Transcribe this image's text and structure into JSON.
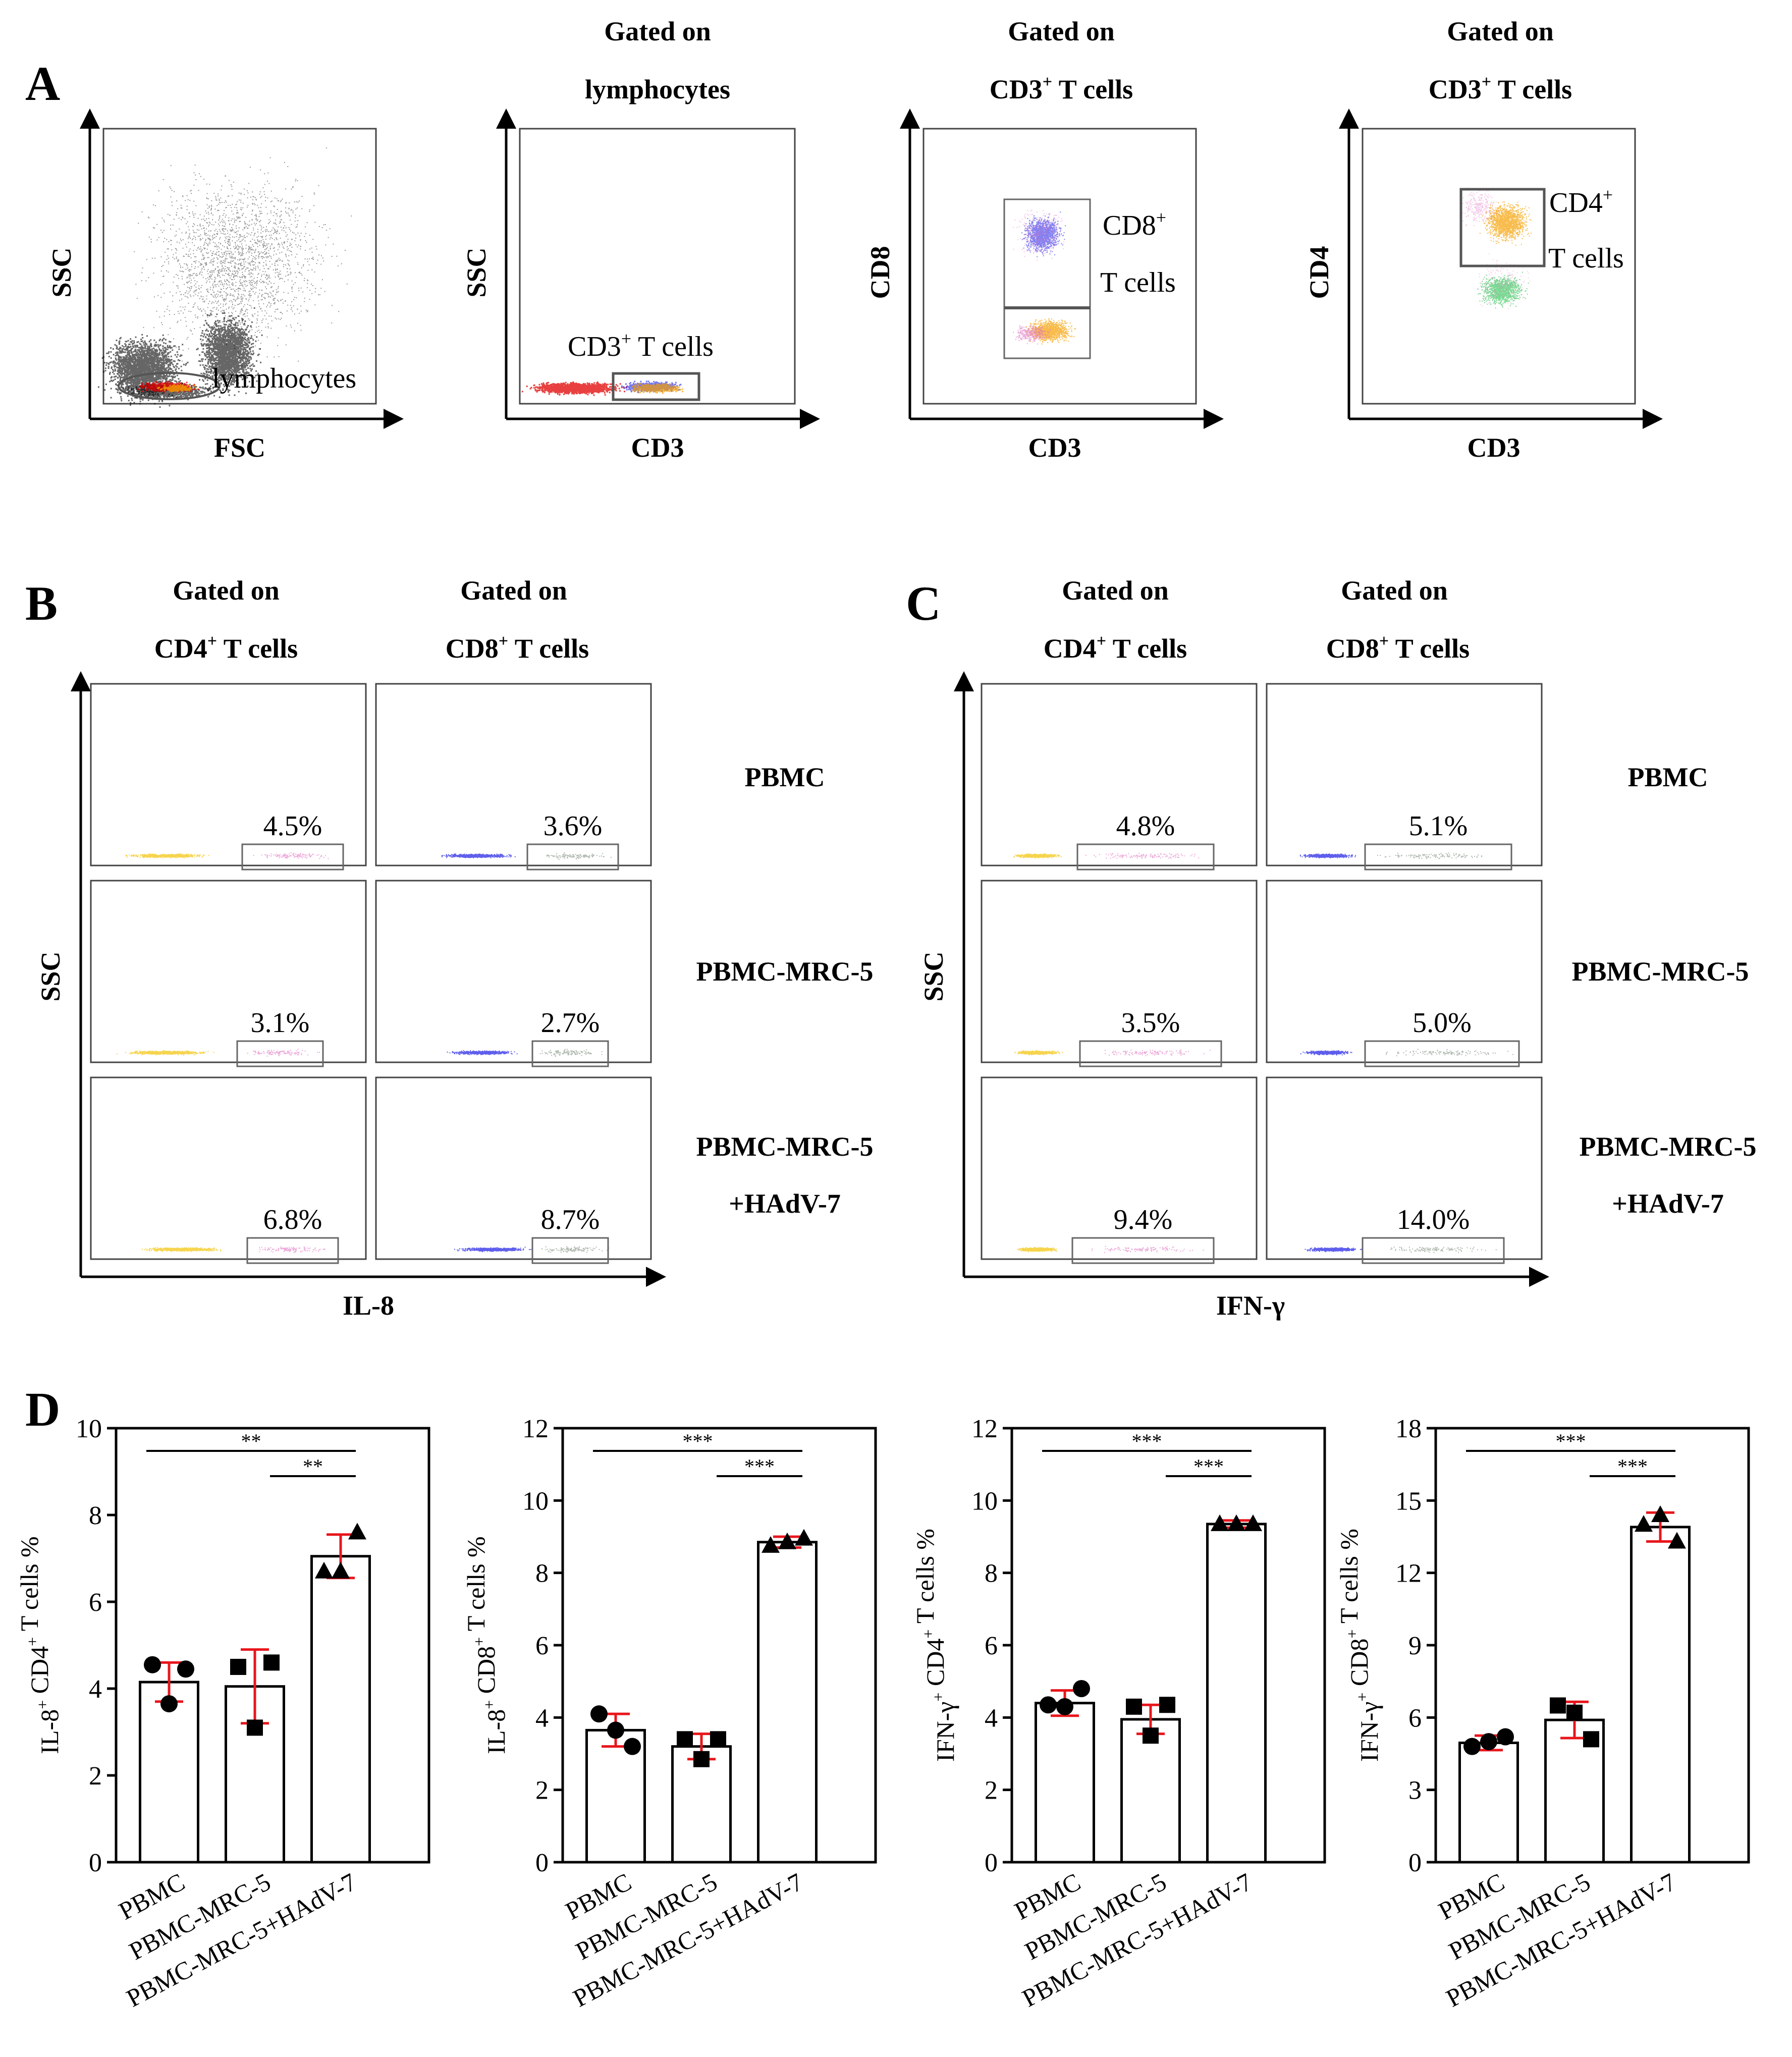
{
  "colors": {
    "red": "#e00000",
    "orange": "#f5a000",
    "blue": "#1a1ae6",
    "green": "#22c24a",
    "pink": "#e070c0",
    "yellow": "#f2c200",
    "errbar": "#e8151b",
    "gray": "#888888"
  },
  "panelA": {
    "letter": "A",
    "plots": [
      {
        "header1": "",
        "header2": "",
        "xlabel": "FSC",
        "ylabel": "SSC",
        "gate_label": "lymphocytes"
      },
      {
        "header1": "Gated on",
        "header2": "lymphocytes",
        "xlabel": "CD3",
        "ylabel": "SSC",
        "gate_label_main": "CD3",
        "gate_label_sup": "+",
        "gate_label_rest": " T cells"
      },
      {
        "header1": "Gated on",
        "header2_main": "CD3",
        "header2_sup": "+",
        "header2_rest": " T cells",
        "xlabel": "CD3",
        "ylabel": "CD8",
        "gate_line1_main": "CD8",
        "gate_line1_sup": "+",
        "gate_line2": "T cells"
      },
      {
        "header1": "Gated on",
        "header2_main": "CD3",
        "header2_sup": "+",
        "header2_rest": " T cells",
        "xlabel": "CD3",
        "ylabel": "CD4",
        "gate_line1_main": "CD4",
        "gate_line1_sup": "+",
        "gate_line2": "T cells"
      }
    ]
  },
  "panelB": {
    "letter": "B",
    "col_header1": "Gated on",
    "col_headers": [
      {
        "main": "CD4",
        "sup": "+",
        "rest": " T cells"
      },
      {
        "main": "CD8",
        "sup": "+",
        "rest": " T cells"
      }
    ],
    "xlabel": "IL-8",
    "ylabel": "SSC",
    "row_labels": [
      [
        "PBMC"
      ],
      [
        "PBMC-MRC-5"
      ],
      [
        "PBMC-MRC-5",
        "+HAdV-7"
      ]
    ],
    "percents": [
      [
        "4.5%",
        "3.6%"
      ],
      [
        "3.1%",
        "2.7%"
      ],
      [
        "6.8%",
        "8.7%"
      ]
    ]
  },
  "panelC": {
    "letter": "C",
    "col_header1": "Gated on",
    "col_headers": [
      {
        "main": "CD4",
        "sup": "+",
        "rest": " T cells"
      },
      {
        "main": "CD8",
        "sup": "+",
        "rest": " T cells"
      }
    ],
    "xlabel": "IFN-γ",
    "ylabel": "SSC",
    "row_labels": [
      [
        "PBMC"
      ],
      [
        "PBMC-MRC-5"
      ],
      [
        "PBMC-MRC-5",
        "+HAdV-7"
      ]
    ],
    "percents": [
      [
        "4.8%",
        "5.1%"
      ],
      [
        "3.5%",
        "5.0%"
      ],
      [
        "9.4%",
        "14.0%"
      ]
    ]
  },
  "panelD": {
    "letter": "D"
  },
  "chart_data": [
    {
      "type": "bar",
      "title": "",
      "ylabel_parts": [
        {
          "t": "IL-8"
        },
        {
          "t": "+",
          "sup": true
        },
        {
          "t": " CD4"
        },
        {
          "t": "+",
          "sup": true
        },
        {
          "t": " T cells %"
        }
      ],
      "categories": [
        "PBMC",
        "PBMC-MRC-5",
        "PBMC-MRC-5+HAdV-7"
      ],
      "values": [
        4.15,
        4.05,
        7.05
      ],
      "errors": [
        0.45,
        0.85,
        0.5
      ],
      "points": [
        [
          4.55,
          4.45,
          3.65
        ],
        [
          4.5,
          4.6,
          3.1
        ],
        [
          6.7,
          7.6,
          6.7
        ]
      ],
      "markers": [
        "circle",
        "square",
        "triangle"
      ],
      "ylim": [
        0,
        10
      ],
      "yticks": [
        0,
        2,
        4,
        6,
        8,
        10
      ],
      "significance": [
        {
          "from": 0,
          "to": 2,
          "label": "**"
        },
        {
          "from": 1,
          "to": 2,
          "label": "**"
        }
      ]
    },
    {
      "type": "bar",
      "title": "",
      "ylabel_parts": [
        {
          "t": "IL-8"
        },
        {
          "t": "+",
          "sup": true
        },
        {
          "t": " CD8"
        },
        {
          "t": "+",
          "sup": true
        },
        {
          "t": " T cells %"
        }
      ],
      "categories": [
        "PBMC",
        "PBMC-MRC-5",
        "PBMC-MRC-5+HAdV-7"
      ],
      "values": [
        3.65,
        3.2,
        8.85
      ],
      "errors": [
        0.45,
        0.35,
        0.15
      ],
      "points": [
        [
          4.1,
          3.2,
          3.65
        ],
        [
          3.4,
          3.4,
          2.85
        ],
        [
          8.75,
          8.95,
          8.85
        ]
      ],
      "markers": [
        "circle",
        "square",
        "triangle"
      ],
      "ylim": [
        0,
        12
      ],
      "yticks": [
        0,
        2,
        4,
        6,
        8,
        10,
        12
      ],
      "significance": [
        {
          "from": 0,
          "to": 2,
          "label": "***"
        },
        {
          "from": 1,
          "to": 2,
          "label": "***"
        }
      ]
    },
    {
      "type": "bar",
      "title": "",
      "ylabel_parts": [
        {
          "t": "IFN-γ"
        },
        {
          "t": "+",
          "sup": true
        },
        {
          "t": " CD4"
        },
        {
          "t": "+",
          "sup": true
        },
        {
          "t": " T cells %"
        }
      ],
      "categories": [
        "PBMC",
        "PBMC-MRC-5",
        "PBMC-MRC-5+HAdV-7"
      ],
      "values": [
        4.4,
        3.95,
        9.35
      ],
      "errors": [
        0.35,
        0.4,
        0.1
      ],
      "points": [
        [
          4.35,
          4.8,
          4.3
        ],
        [
          4.3,
          4.35,
          3.5
        ],
        [
          9.35,
          9.35,
          9.35
        ]
      ],
      "markers": [
        "circle",
        "square",
        "triangle"
      ],
      "ylim": [
        0,
        12
      ],
      "yticks": [
        0,
        2,
        4,
        6,
        8,
        10,
        12
      ],
      "significance": [
        {
          "from": 0,
          "to": 2,
          "label": "***"
        },
        {
          "from": 1,
          "to": 2,
          "label": "***"
        }
      ]
    },
    {
      "type": "bar",
      "title": "",
      "ylabel_parts": [
        {
          "t": "IFN-γ"
        },
        {
          "t": "+",
          "sup": true
        },
        {
          "t": " CD8"
        },
        {
          "t": "+",
          "sup": true
        },
        {
          "t": " T cells %"
        }
      ],
      "categories": [
        "PBMC",
        "PBMC-MRC-5",
        "PBMC-MRC-5+HAdV-7"
      ],
      "values": [
        4.95,
        5.9,
        13.9
      ],
      "errors": [
        0.3,
        0.75,
        0.6
      ],
      "points": [
        [
          4.8,
          5.2,
          5.0
        ],
        [
          6.5,
          5.1,
          6.2
        ],
        [
          14.0,
          13.3,
          14.4
        ]
      ],
      "markers": [
        "circle",
        "square",
        "triangle"
      ],
      "ylim": [
        0,
        18
      ],
      "yticks": [
        0,
        3,
        6,
        9,
        12,
        15,
        18
      ],
      "significance": [
        {
          "from": 0,
          "to": 2,
          "label": "***"
        },
        {
          "from": 1,
          "to": 2,
          "label": "***"
        }
      ]
    }
  ]
}
